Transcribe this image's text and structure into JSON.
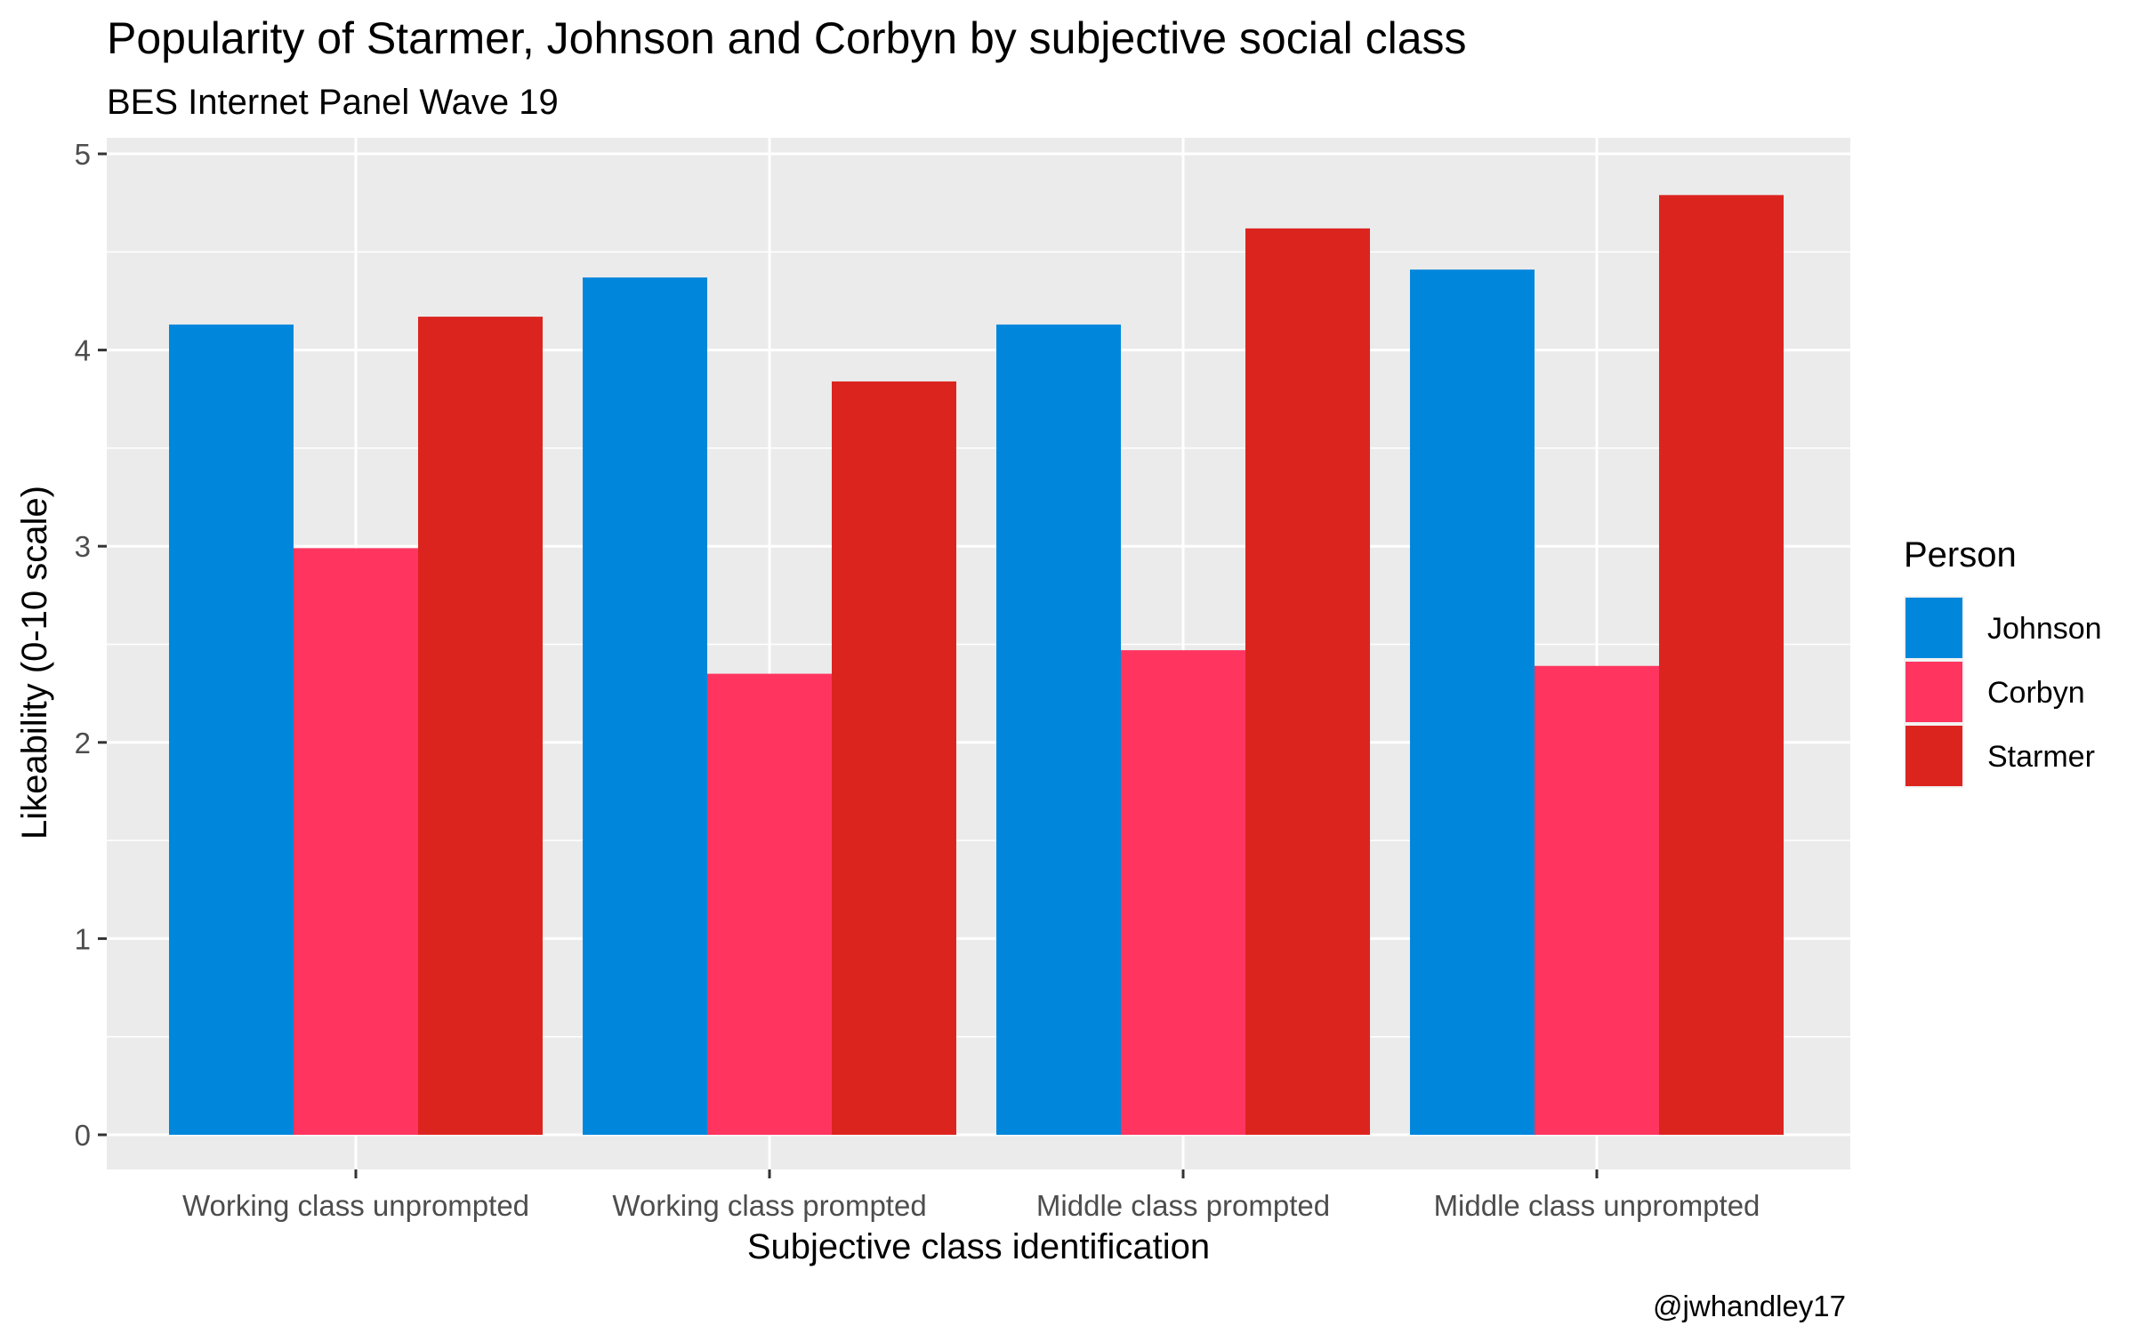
{
  "chart_data": {
    "type": "bar",
    "title": "Popularity of Starmer, Johnson and Corbyn by subjective social class",
    "subtitle": "BES Internet Panel Wave 19",
    "xlabel": "Subjective class identification",
    "ylabel": "Likeability (0-10 scale)",
    "caption": "@jwhandley17",
    "categories": [
      "Working class unprompted",
      "Working class prompted",
      "Middle class prompted",
      "Middle class unprompted"
    ],
    "series": [
      {
        "name": "Johnson",
        "color": "#0087dc",
        "values": [
          4.13,
          4.37,
          4.13,
          4.41
        ]
      },
      {
        "name": "Corbyn",
        "color": "#ff3560",
        "values": [
          2.99,
          2.35,
          2.47,
          2.39
        ]
      },
      {
        "name": "Starmer",
        "color": "#dc241f",
        "values": [
          4.17,
          3.84,
          4.62,
          4.79
        ]
      }
    ],
    "ylim": [
      0,
      5
    ],
    "yticks": [
      "0",
      "1",
      "2",
      "3",
      "4",
      "5"
    ],
    "legend": {
      "title": "Person",
      "position": "right"
    },
    "grid": true,
    "panel_background": "#ebebeb"
  }
}
